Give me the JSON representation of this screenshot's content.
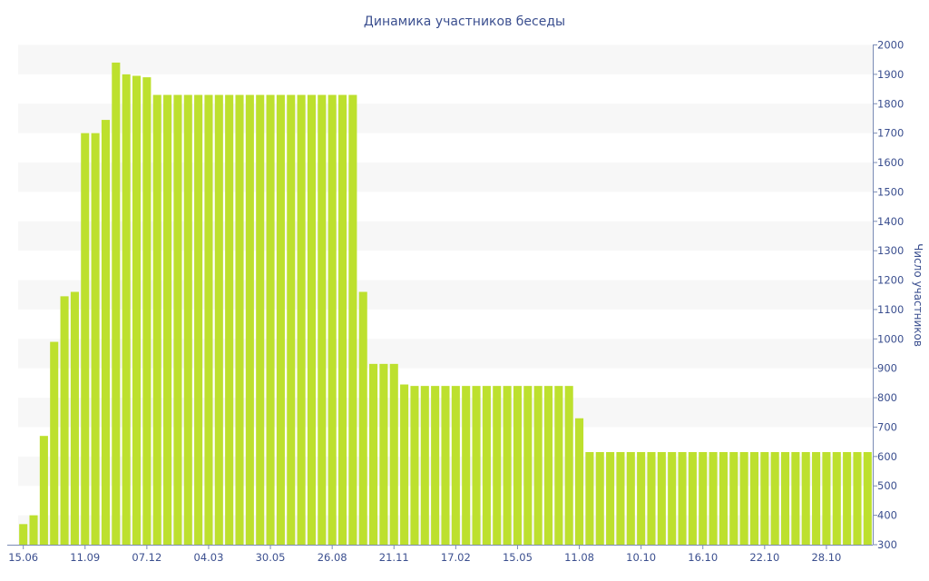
{
  "chart_data": {
    "type": "bar",
    "title": "Динамика участников беседы",
    "xlabel": "",
    "ylabel": "Число участников",
    "ylim": [
      300,
      2000
    ],
    "y_ticks": [
      300,
      400,
      500,
      600,
      700,
      800,
      900,
      1000,
      1100,
      1200,
      1300,
      1400,
      1500,
      1600,
      1700,
      1800,
      1900,
      2000
    ],
    "x_tick_labels": [
      "15.06",
      "11.09",
      "07.12",
      "04.03",
      "30.05",
      "26.08",
      "21.11",
      "17.02",
      "15.05",
      "11.08",
      "10.10",
      "16.10",
      "22.10",
      "28.10"
    ],
    "x_tick_indices": [
      0,
      6,
      12,
      18,
      24,
      30,
      36,
      42,
      48,
      54,
      60,
      66,
      72,
      78
    ],
    "grid": "horizontal alternating bands",
    "y_axis_position": "right",
    "bar_color": "#bde02e",
    "label_color": "#3b4f8f",
    "values": [
      370,
      400,
      670,
      990,
      1145,
      1160,
      1700,
      1700,
      1745,
      1940,
      1900,
      1895,
      1890,
      1830,
      1830,
      1830,
      1830,
      1830,
      1830,
      1830,
      1830,
      1830,
      1830,
      1830,
      1830,
      1830,
      1830,
      1830,
      1830,
      1830,
      1830,
      1830,
      1830,
      1160,
      915,
      915,
      915,
      845,
      840,
      840,
      840,
      840,
      840,
      840,
      840,
      840,
      840,
      840,
      840,
      840,
      840,
      840,
      840,
      840,
      730,
      615,
      615,
      615,
      615,
      615,
      615,
      615,
      615,
      615,
      615,
      615,
      615,
      615,
      615,
      615,
      615,
      615,
      615,
      615,
      615,
      615,
      615,
      615,
      615,
      615,
      615,
      615,
      615
    ]
  }
}
